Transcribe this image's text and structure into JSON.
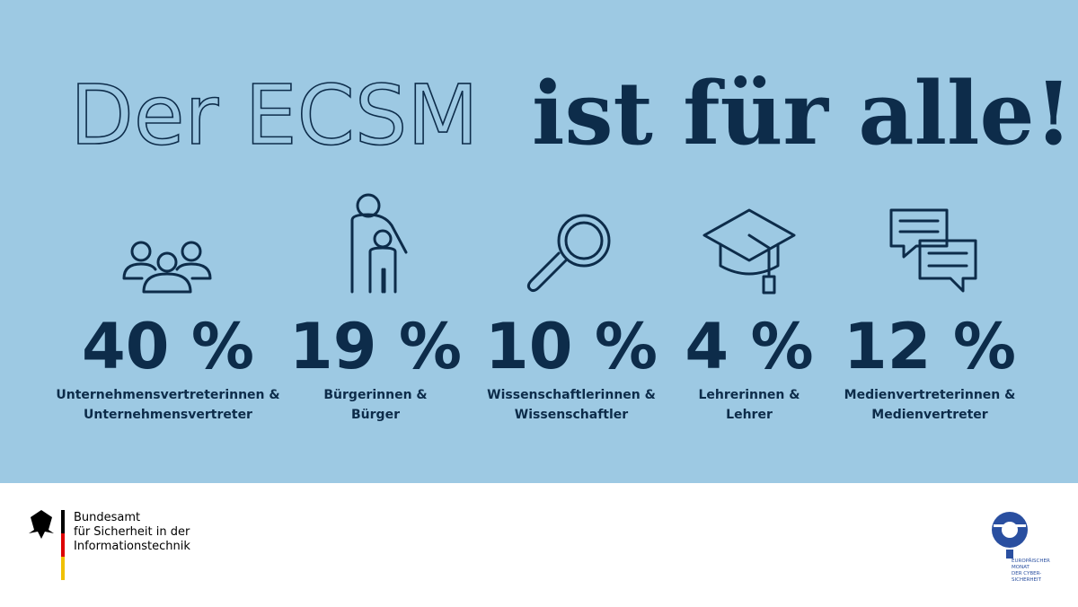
{
  "title": {
    "outline": "Der ECSM",
    "solid": "ist für alle!"
  },
  "stats": [
    {
      "value": "40 %",
      "label": [
        "Unternehmensvertreterinnen &",
        "Unternehmensvertreter"
      ]
    },
    {
      "value": "19 %",
      "label": [
        "Bürgerinnen &",
        "Bürger"
      ]
    },
    {
      "value": "10 %",
      "label": [
        "Wissenschaftlerinnen &",
        "Wissenschaftler"
      ]
    },
    {
      "value": "4 %",
      "label": [
        "Lehrerinnen &",
        "Lehrer"
      ]
    },
    {
      "value": "12 %",
      "label": [
        "Medienvertreterinnen &",
        "Medienvertreter"
      ]
    }
  ],
  "footer": {
    "bsi": [
      "Bundesamt",
      "für Sicherheit in der",
      "Informationstechnik"
    ],
    "ecsm": [
      "EUROPÄISCHER",
      "MONAT",
      "DER CYBER-",
      "SICHERHEIT"
    ]
  }
}
